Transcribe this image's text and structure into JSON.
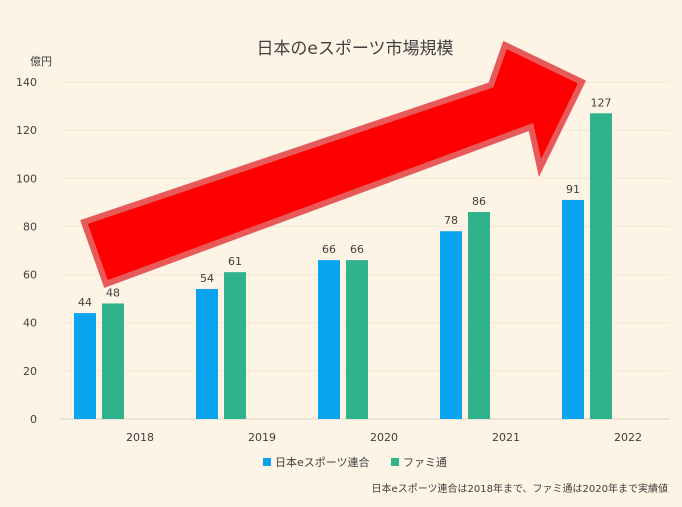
{
  "chart_data": {
    "type": "bar",
    "title": "日本のeスポーツ市場規模",
    "ylabel": "億円",
    "xlabel": "",
    "categories": [
      "2018",
      "2019",
      "2020",
      "2021",
      "2022"
    ],
    "series": [
      {
        "name": "日本eスポーツ連合",
        "color": "#0aa3f0",
        "values": [
          44,
          54,
          66,
          78,
          91
        ]
      },
      {
        "name": "ファミ通",
        "color": "#2fb38c",
        "values": [
          48,
          61,
          66,
          86,
          127
        ]
      }
    ],
    "ylim": [
      0,
      140
    ],
    "yticks": [
      "0",
      "20",
      "40",
      "60",
      "80",
      "100",
      "120",
      "140"
    ],
    "grid": true,
    "legend": "bottom-center",
    "note": "日本eスポーツ連合は2018年まで、ファミ通は2020年まで実績値",
    "overlay_arrow": {
      "color": "#ff0000",
      "outline": "#e85a5a",
      "direction": "up-right"
    }
  }
}
